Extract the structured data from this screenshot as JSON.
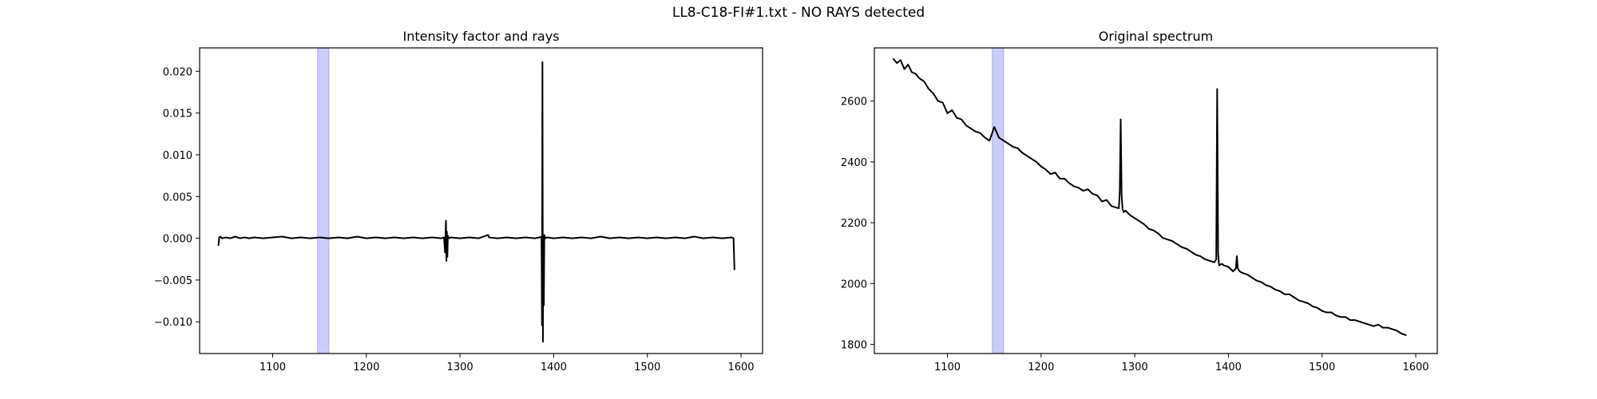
{
  "figure": {
    "title": "LL8-C18-FI#1.txt - NO RAYS detected"
  },
  "chart_data": [
    {
      "type": "line",
      "title": "Intensity factor and rays",
      "xlabel": "",
      "ylabel": "",
      "xlim": [
        1022,
        1623
      ],
      "ylim": [
        -0.0138,
        0.0228
      ],
      "xticks": [
        1100,
        1200,
        1300,
        1400,
        1500,
        1600
      ],
      "yticks": [
        -0.01,
        -0.005,
        0.0,
        0.005,
        0.01,
        0.015,
        0.02
      ],
      "ytick_labels": [
        "−0.010",
        "−0.005",
        "0.000",
        "0.005",
        "0.010",
        "0.015",
        "0.020"
      ],
      "xtick_labels": [
        "1100",
        "1200",
        "1300",
        "1400",
        "1500",
        "1600"
      ],
      "highlight_span": [
        1148,
        1160
      ],
      "highlight_color": "#ccccfb",
      "line_color": "#000000",
      "series": [
        {
          "x": [
            1042,
            1043,
            1044,
            1046,
            1050,
            1055,
            1060,
            1065,
            1070,
            1075,
            1080,
            1090,
            1100,
            1110,
            1120,
            1130,
            1140,
            1150,
            1160,
            1170,
            1180,
            1190,
            1200,
            1210,
            1220,
            1230,
            1240,
            1250,
            1260,
            1270,
            1280,
            1283,
            1284,
            1285,
            1285.5,
            1286,
            1286.5,
            1287,
            1288,
            1290,
            1300,
            1310,
            1320,
            1330,
            1331,
            1340,
            1350,
            1360,
            1370,
            1380,
            1385,
            1387,
            1387.5,
            1388,
            1388.5,
            1389,
            1389.5,
            1390,
            1391,
            1393,
            1400,
            1410,
            1420,
            1430,
            1440,
            1450,
            1460,
            1470,
            1480,
            1490,
            1500,
            1510,
            1520,
            1530,
            1540,
            1550,
            1560,
            1570,
            1580,
            1590,
            1592,
            1593
          ],
          "y": [
            -0.0009,
            0.0001,
            0.0002,
            0.0,
            0.0001,
            0.0,
            0.0002,
            0.0,
            0.0001,
            0.0,
            0.0001,
            0.0,
            0.0001,
            0.0002,
            0.0,
            0.0001,
            0.0,
            0.0001,
            0.0,
            0.0001,
            0.0,
            0.0002,
            0.0,
            0.0001,
            0.0,
            0.0001,
            0.0,
            0.0001,
            0.0,
            0.0001,
            0.0,
            0.0001,
            -0.0017,
            0.0021,
            -0.0027,
            0.0008,
            -0.0022,
            0.0003,
            0.0,
            0.0001,
            0.0,
            0.0001,
            0.0,
            0.0004,
            0.0001,
            0.0,
            0.0001,
            0.0,
            0.0001,
            0.0,
            0.0001,
            0.0002,
            -0.0104,
            0.0211,
            -0.0124,
            0.0003,
            -0.008,
            0.0004,
            0.0,
            0.0001,
            0.0,
            0.0001,
            0.0,
            0.0001,
            0.0,
            0.0002,
            0.0,
            0.0001,
            0.0,
            0.0001,
            0.0,
            0.0001,
            0.0,
            0.0001,
            0.0,
            0.0002,
            0.0,
            0.0001,
            0.0,
            0.0001,
            0.0,
            -0.0038
          ]
        }
      ]
    },
    {
      "type": "line",
      "title": "Original spectrum",
      "xlabel": "",
      "ylabel": "",
      "xlim": [
        1022,
        1623
      ],
      "ylim": [
        1770,
        2775
      ],
      "xticks": [
        1100,
        1200,
        1300,
        1400,
        1500,
        1600
      ],
      "yticks": [
        1800,
        2000,
        2200,
        2400,
        2600
      ],
      "ytick_labels": [
        "1800",
        "2000",
        "2200",
        "2400",
        "2600"
      ],
      "xtick_labels": [
        "1100",
        "1200",
        "1300",
        "1400",
        "1500",
        "1600"
      ],
      "highlight_span": [
        1148,
        1160
      ],
      "highlight_color": "#ccccfb",
      "line_color": "#000000",
      "series": [
        {
          "x": [
            1042,
            1046,
            1050,
            1054,
            1058,
            1062,
            1066,
            1070,
            1075,
            1080,
            1085,
            1090,
            1095,
            1100,
            1105,
            1110,
            1115,
            1120,
            1125,
            1130,
            1135,
            1140,
            1145,
            1150,
            1155,
            1160,
            1165,
            1170,
            1175,
            1180,
            1185,
            1190,
            1195,
            1200,
            1205,
            1210,
            1215,
            1220,
            1225,
            1230,
            1235,
            1240,
            1245,
            1250,
            1255,
            1260,
            1265,
            1270,
            1275,
            1280,
            1283,
            1284,
            1285,
            1286,
            1287,
            1288,
            1290,
            1295,
            1300,
            1305,
            1310,
            1315,
            1320,
            1325,
            1330,
            1335,
            1340,
            1345,
            1350,
            1355,
            1360,
            1365,
            1370,
            1375,
            1380,
            1385,
            1387,
            1388,
            1389,
            1390,
            1393,
            1395,
            1400,
            1405,
            1408,
            1409,
            1410,
            1412,
            1415,
            1420,
            1425,
            1430,
            1435,
            1440,
            1445,
            1450,
            1455,
            1460,
            1465,
            1470,
            1475,
            1480,
            1485,
            1490,
            1495,
            1500,
            1505,
            1510,
            1515,
            1520,
            1525,
            1530,
            1535,
            1540,
            1545,
            1550,
            1555,
            1560,
            1565,
            1570,
            1575,
            1580,
            1585,
            1590
          ],
          "y": [
            2740,
            2725,
            2735,
            2705,
            2720,
            2695,
            2690,
            2675,
            2665,
            2640,
            2625,
            2600,
            2595,
            2560,
            2570,
            2545,
            2540,
            2520,
            2510,
            2500,
            2495,
            2480,
            2470,
            2515,
            2480,
            2470,
            2460,
            2450,
            2445,
            2430,
            2420,
            2410,
            2400,
            2385,
            2375,
            2360,
            2365,
            2345,
            2345,
            2330,
            2320,
            2315,
            2305,
            2310,
            2295,
            2290,
            2270,
            2275,
            2255,
            2250,
            2248,
            2300,
            2540,
            2290,
            2245,
            2235,
            2240,
            2225,
            2215,
            2205,
            2195,
            2180,
            2175,
            2165,
            2150,
            2145,
            2140,
            2130,
            2120,
            2115,
            2105,
            2095,
            2090,
            2080,
            2075,
            2070,
            2080,
            2640,
            2100,
            2060,
            2065,
            2060,
            2055,
            2040,
            2050,
            2090,
            2050,
            2040,
            2035,
            2030,
            2020,
            2010,
            2005,
            1995,
            1990,
            1980,
            1975,
            1965,
            1965,
            1955,
            1945,
            1940,
            1935,
            1925,
            1920,
            1910,
            1905,
            1905,
            1895,
            1890,
            1890,
            1880,
            1880,
            1875,
            1870,
            1865,
            1860,
            1865,
            1855,
            1855,
            1850,
            1845,
            1835,
            1830
          ]
        }
      ]
    }
  ]
}
